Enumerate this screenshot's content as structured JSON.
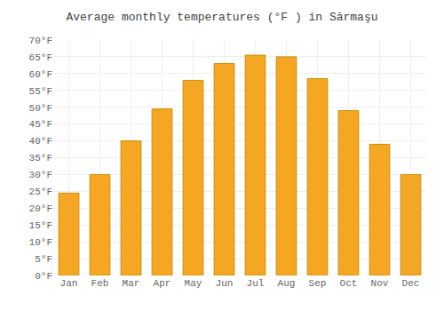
{
  "chart_data": {
    "type": "bar",
    "title": "Average monthly temperatures (°F ) in Sărmaşu",
    "categories": [
      "Jan",
      "Feb",
      "Mar",
      "Apr",
      "May",
      "Jun",
      "Jul",
      "Aug",
      "Sep",
      "Oct",
      "Nov",
      "Dec"
    ],
    "values": [
      24.5,
      30.0,
      40.0,
      49.5,
      58.0,
      63.0,
      65.5,
      65.0,
      58.5,
      49.0,
      39.0,
      30.0
    ],
    "color": "#F5A623",
    "ylim": [
      0,
      70
    ],
    "yticks": [
      {
        "value": 0,
        "label": "0°F"
      },
      {
        "value": 5,
        "label": "5°F"
      },
      {
        "value": 10,
        "label": "10°F"
      },
      {
        "value": 15,
        "label": "15°F"
      },
      {
        "value": 20,
        "label": "20°F"
      },
      {
        "value": 25,
        "label": "25°F"
      },
      {
        "value": 30,
        "label": "30°F"
      },
      {
        "value": 35,
        "label": "35°F"
      },
      {
        "value": 40,
        "label": "40°F"
      },
      {
        "value": 45,
        "label": "45°F"
      },
      {
        "value": 50,
        "label": "50°F"
      },
      {
        "value": 55,
        "label": "55°F"
      },
      {
        "value": 60,
        "label": "60°F"
      },
      {
        "value": 65,
        "label": "65°F"
      },
      {
        "value": 70,
        "label": "70°F"
      }
    ],
    "grid": true
  }
}
